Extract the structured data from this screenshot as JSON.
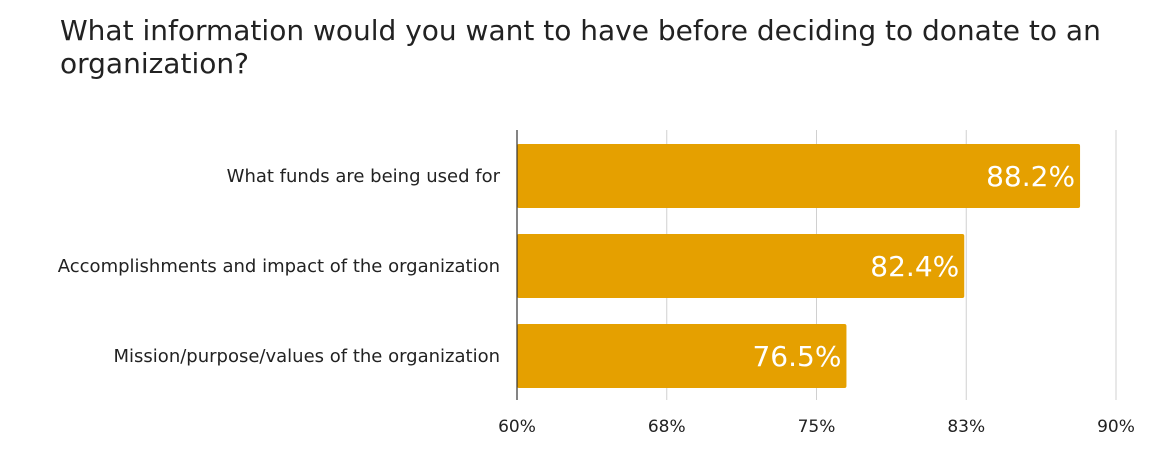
{
  "chart_data": {
    "type": "bar",
    "orientation": "horizontal",
    "title": "What information would you want to have before deciding to donate to an organization?",
    "categories": [
      "What funds are being used for",
      "Accomplishments and impact of the organization",
      "Mission/purpose/values of the organization"
    ],
    "values": [
      88.2,
      82.4,
      76.5
    ],
    "data_labels": [
      "88.2%",
      "82.4%",
      "76.5%"
    ],
    "xlim": [
      60,
      90
    ],
    "ticks": [
      60,
      67.5,
      75,
      82.5,
      90
    ],
    "tick_labels": [
      "60%",
      "68%",
      "75%",
      "83%",
      "90%"
    ],
    "bar_color": "#E5A000",
    "grid": true,
    "legend": "none"
  }
}
